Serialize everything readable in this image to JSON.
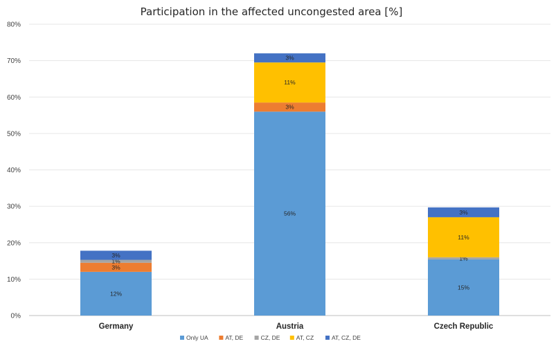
{
  "chart_data": {
    "type": "bar",
    "stacked": true,
    "title": "Participation in the affected uncongested area [%]",
    "categories": [
      "Germany",
      "Austria",
      "Czech Republic"
    ],
    "series": [
      {
        "name": "Only UA",
        "color": "#5b9bd5",
        "values": [
          12,
          56,
          15.4
        ],
        "labels": [
          "12%",
          "56%",
          "15%"
        ]
      },
      {
        "name": "AT, DE",
        "color": "#ed7d31",
        "values": [
          2.5,
          2.5,
          0
        ],
        "labels": [
          "3%",
          "3%",
          ""
        ]
      },
      {
        "name": "CZ, DE",
        "color": "#a5a5a5",
        "values": [
          0.8,
          0,
          0.6
        ],
        "labels": [
          "1%",
          "",
          "1%"
        ]
      },
      {
        "name": "AT, CZ",
        "color": "#ffc000",
        "values": [
          0,
          11,
          11
        ],
        "labels": [
          "",
          "11%",
          "11%"
        ]
      },
      {
        "name": "AT, CZ, DE",
        "color": "#4472c4",
        "values": [
          2.5,
          2.5,
          2.7
        ],
        "labels": [
          "3%",
          "3%",
          "3%"
        ]
      }
    ],
    "ylim": [
      0,
      80
    ],
    "yticks": [
      0,
      10,
      20,
      30,
      40,
      50,
      60,
      70,
      80
    ],
    "ytick_labels": [
      "0%",
      "10%",
      "20%",
      "30%",
      "40%",
      "50%",
      "60%",
      "70%",
      "80%"
    ],
    "grid": true,
    "legend_position": "bottom"
  }
}
